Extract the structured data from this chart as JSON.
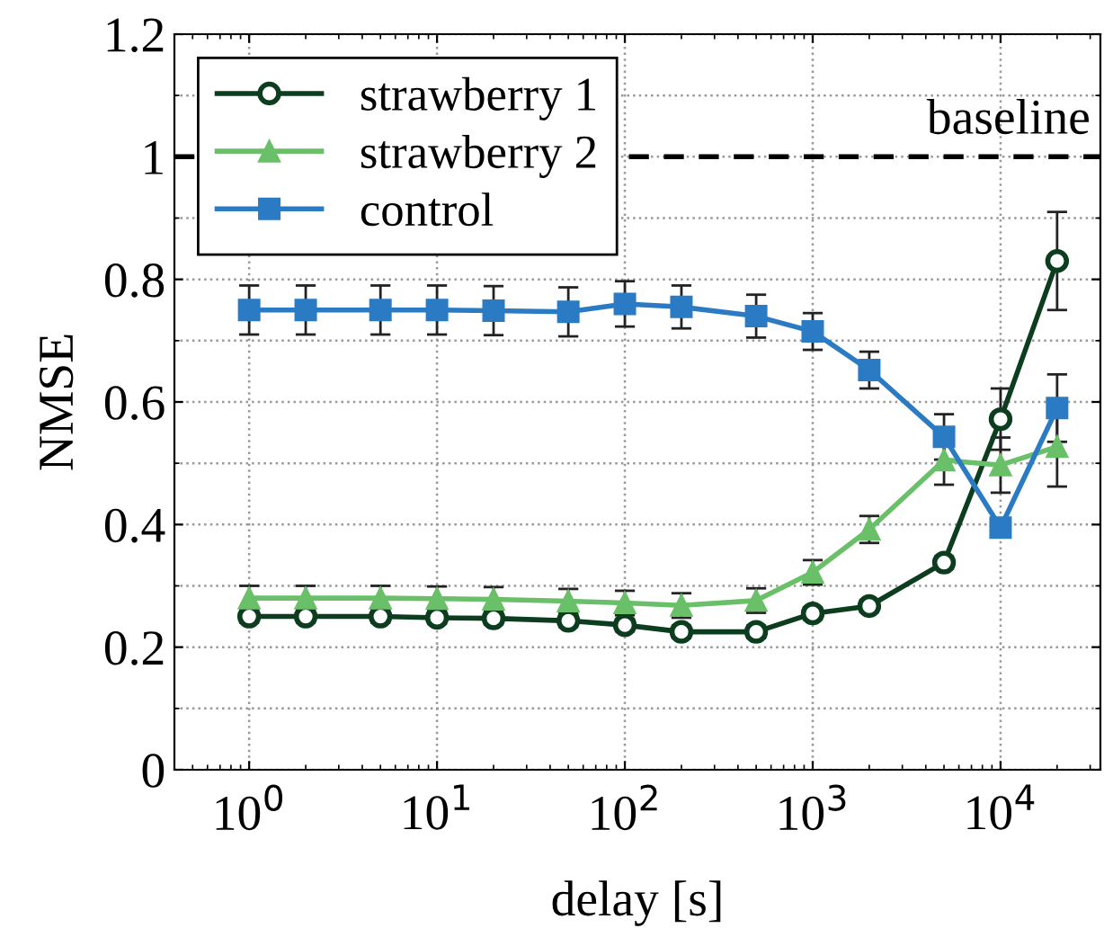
{
  "chart_data": {
    "type": "line",
    "xlabel": "delay [s]",
    "ylabel": "NMSE",
    "log": "x",
    "x": [
      1,
      2,
      5,
      10,
      20,
      50,
      100,
      200,
      500,
      1000,
      2000,
      5000,
      10000,
      20000
    ],
    "xlim": [
      0.4,
      34000
    ],
    "xticks": [
      {
        "value": 1,
        "label": "10$^{0}$"
      },
      {
        "value": 10,
        "label": "10$^{1}$"
      },
      {
        "value": 100,
        "label": "10$^{2}$"
      },
      {
        "value": 1000,
        "label": "10$^{3}$"
      },
      {
        "value": 10000,
        "label": "10$^{4}$"
      }
    ],
    "ylim": [
      0,
      1.2
    ],
    "yticks": [
      0,
      0.2,
      0.4,
      0.6,
      0.8,
      1,
      1.2
    ],
    "grid": true,
    "legend": "top left",
    "ref_lines": [
      {
        "axis": "y",
        "value": 1,
        "label": "baseline",
        "color": "#000000",
        "line_style": "dashed"
      }
    ],
    "series": [
      {
        "name": "strawberry 1",
        "color": "#0b3d1e",
        "marker": "circle",
        "values": [
          0.25,
          0.25,
          0.25,
          0.248,
          0.247,
          0.243,
          0.236,
          0.225,
          0.225,
          0.255,
          0.267,
          0.338,
          0.572,
          0.83
        ],
        "errors": [
          0.01,
          0.01,
          0.01,
          0.01,
          0.01,
          0.01,
          0.01,
          0.01,
          0.01,
          0.01,
          0.01,
          0.01,
          0.05,
          0.08
        ]
      },
      {
        "name": "strawberry 2",
        "color": "#6abf69",
        "marker": "triangle",
        "values": [
          0.28,
          0.28,
          0.28,
          0.279,
          0.278,
          0.275,
          0.272,
          0.268,
          0.276,
          0.322,
          0.392,
          0.505,
          0.497,
          0.527
        ],
        "errors": [
          0.02,
          0.02,
          0.02,
          0.02,
          0.02,
          0.02,
          0.02,
          0.02,
          0.02,
          0.02,
          0.022,
          0.04,
          0.045,
          0.065
        ]
      },
      {
        "name": "control",
        "color": "#2a7bc4",
        "marker": "square",
        "values": [
          0.75,
          0.75,
          0.75,
          0.75,
          0.749,
          0.747,
          0.76,
          0.755,
          0.74,
          0.715,
          0.652,
          0.543,
          0.395,
          0.59
        ],
        "errors": [
          0.04,
          0.04,
          0.04,
          0.04,
          0.04,
          0.04,
          0.037,
          0.035,
          0.035,
          0.03,
          0.03,
          0.037,
          null,
          0.055
        ]
      }
    ]
  }
}
